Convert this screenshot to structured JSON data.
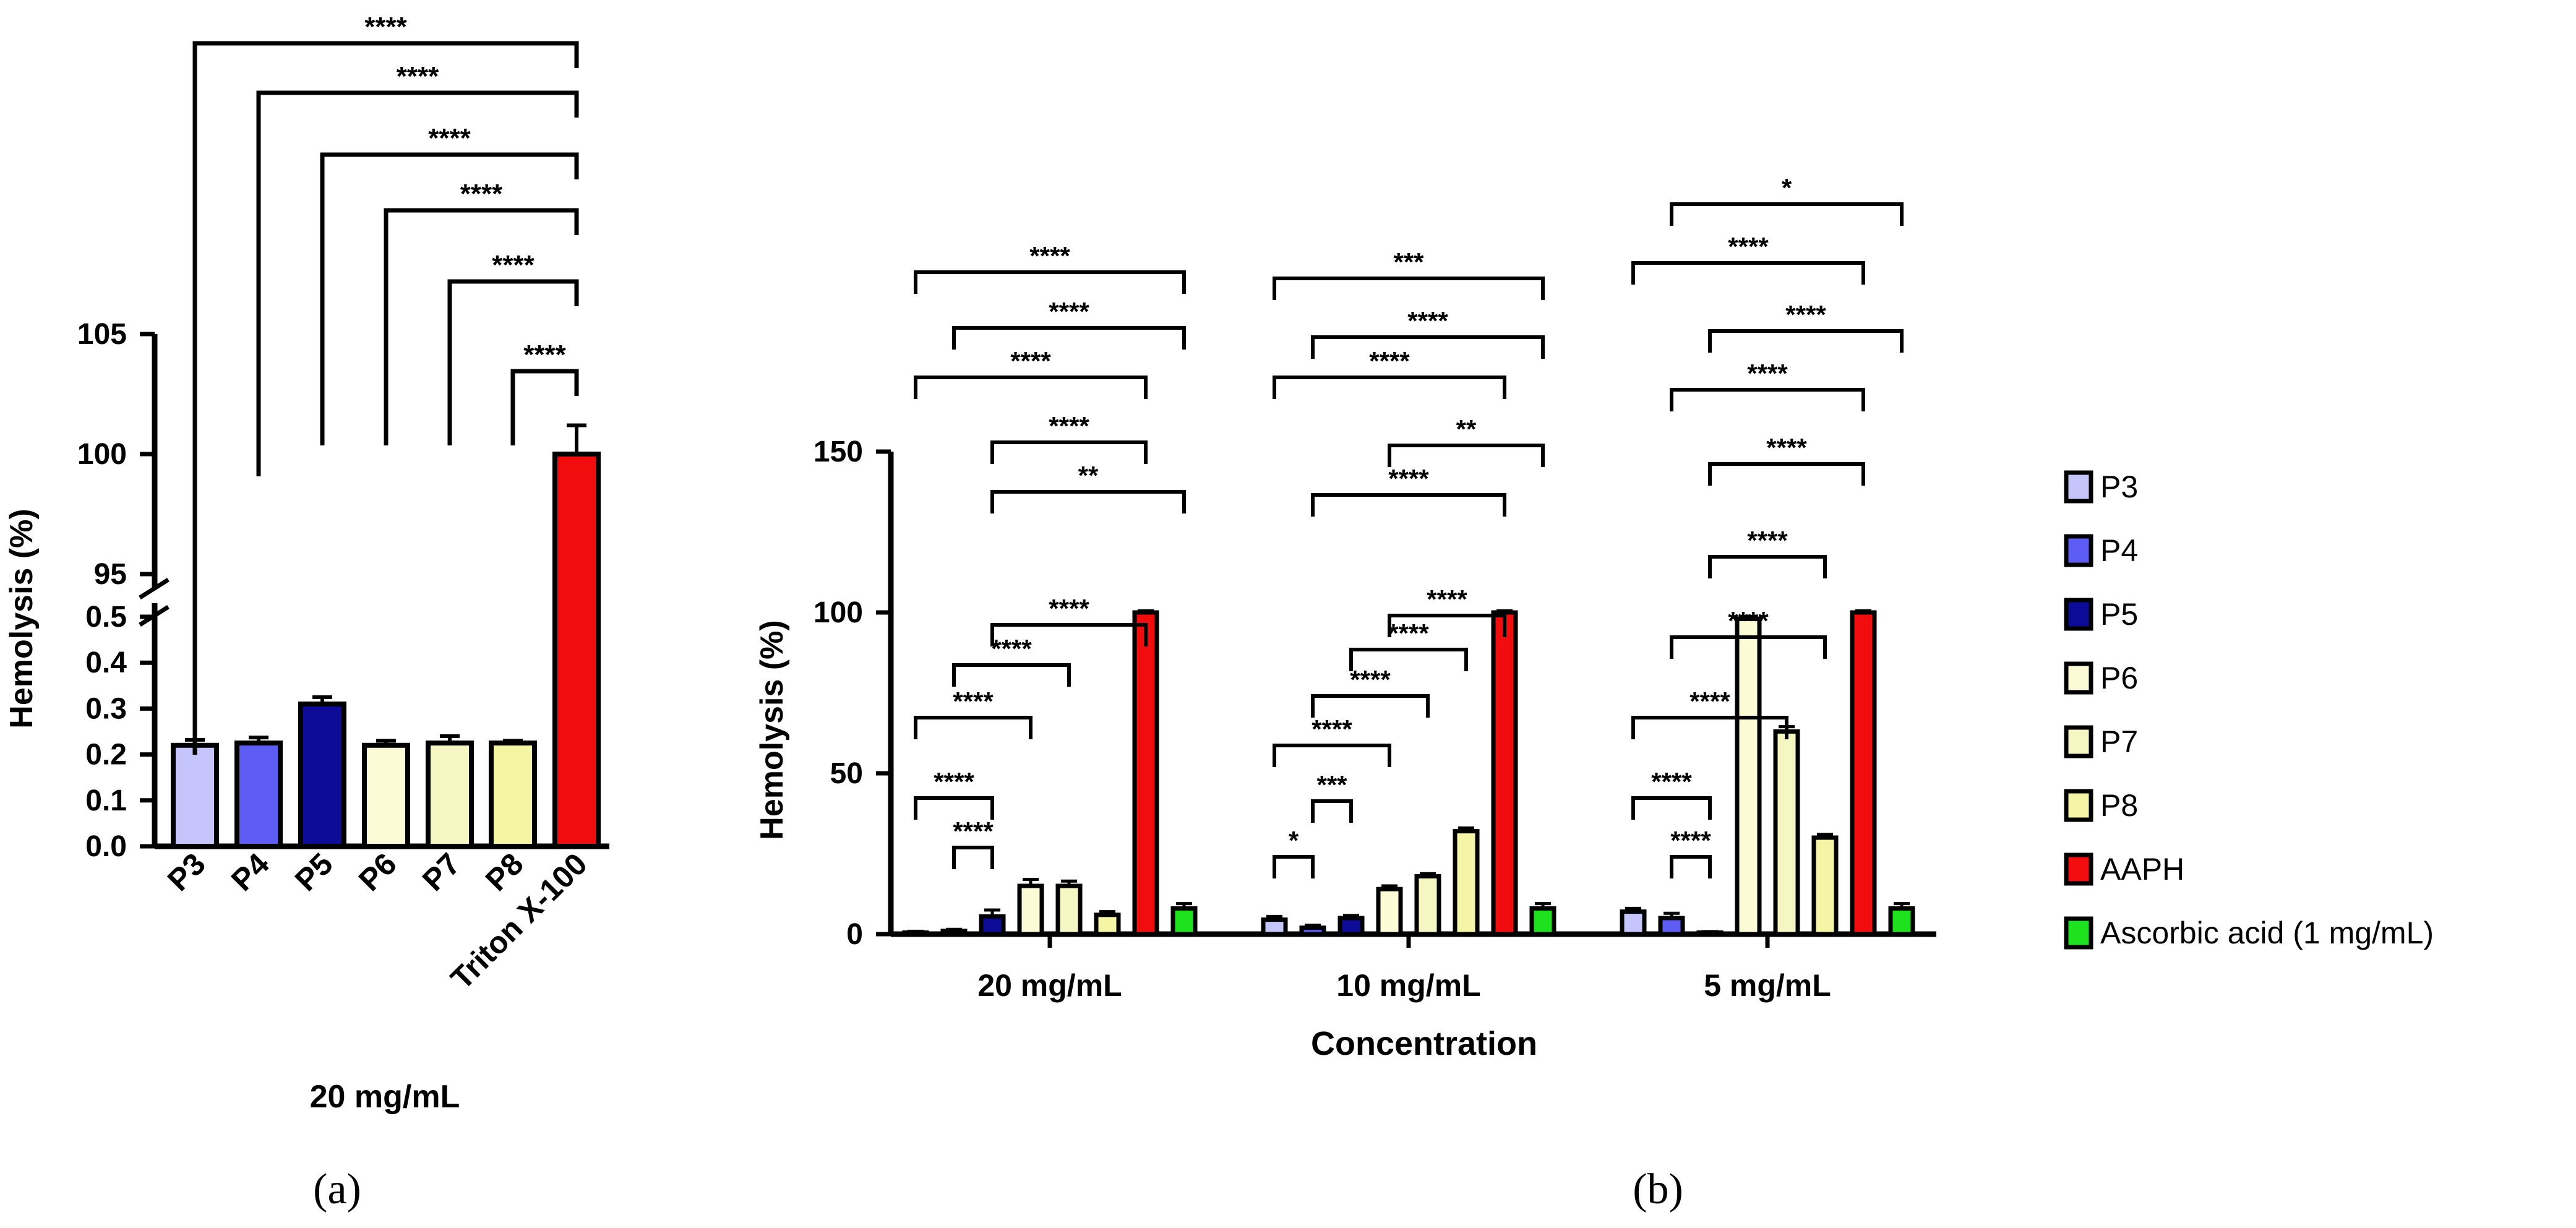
{
  "chart_data": [
    {
      "id": "a",
      "type": "bar",
      "panel_label": "(a)",
      "title": "",
      "xlabel": "20 mg/mL",
      "ylabel": "Hemolysis (%)",
      "y_axis_break": true,
      "ylim_lower": [
        0,
        0.5
      ],
      "ylim_upper": [
        95,
        105
      ],
      "yticks_lower": [
        "0.0",
        "0.1",
        "0.2",
        "0.3",
        "0.4",
        "0.5"
      ],
      "yticks_upper": [
        "95",
        "100",
        "105"
      ],
      "categories": [
        "P3",
        "P4",
        "P5",
        "P6",
        "P7",
        "P8",
        "Triton X-100"
      ],
      "values": [
        0.22,
        0.225,
        0.31,
        0.22,
        0.225,
        0.225,
        100
      ],
      "errors": [
        0.012,
        0.012,
        0.015,
        0.01,
        0.015,
        0.005,
        1.2
      ],
      "colors": [
        "#c5c5fb",
        "#5d5df5",
        "#0c0c99",
        "#fbfbd6",
        "#f5f7c3",
        "#f5f5a6",
        "#f10d0d"
      ],
      "comparisons": [
        {
          "from": "P3",
          "to": "Triton X-100",
          "label": "****"
        },
        {
          "from": "P4",
          "to": "Triton X-100",
          "label": "****"
        },
        {
          "from": "P5",
          "to": "Triton X-100",
          "label": "****"
        },
        {
          "from": "P6",
          "to": "Triton X-100",
          "label": "****"
        },
        {
          "from": "P7",
          "to": "Triton X-100",
          "label": "****"
        },
        {
          "from": "P8",
          "to": "Triton X-100",
          "label": "****"
        }
      ]
    },
    {
      "id": "b",
      "type": "bar",
      "panel_label": "(b)",
      "title": "",
      "xlabel": "Concentration",
      "ylabel": "Hemolysis (%)",
      "ylim": [
        0,
        150
      ],
      "yticks": [
        "0",
        "50",
        "100",
        "150"
      ],
      "categories": [
        "20 mg/mL",
        "10 mg/mL",
        "5 mg/mL"
      ],
      "legend_position": "right",
      "series": [
        {
          "name": "P3",
          "color": "#c5c5fb",
          "values": [
            0.5,
            4.5,
            7.0
          ],
          "errors": [
            0.4,
            1.0,
            1.0
          ]
        },
        {
          "name": "P4",
          "color": "#5d5df5",
          "values": [
            1.0,
            2.0,
            5.0
          ],
          "errors": [
            0.5,
            0.8,
            1.5
          ]
        },
        {
          "name": "P5",
          "color": "#0c0c99",
          "values": [
            5.5,
            5.0,
            0.5
          ],
          "errors": [
            2.0,
            0.8,
            0.3
          ]
        },
        {
          "name": "P6",
          "color": "#fbfbd6",
          "values": [
            15.0,
            14.0,
            98.0
          ],
          "errors": [
            2.0,
            1.0,
            0.8
          ]
        },
        {
          "name": "P7",
          "color": "#f5f7c3",
          "values": [
            15.0,
            18.0,
            63.0
          ],
          "errors": [
            1.5,
            0.8,
            1.5
          ]
        },
        {
          "name": "P8",
          "color": "#f5f5a6",
          "values": [
            6.0,
            32.0,
            30.0
          ],
          "errors": [
            1.0,
            1.0,
            1.0
          ]
        },
        {
          "name": "AAPH",
          "color": "#f10d0d",
          "values": [
            100.0,
            100.0,
            100.0
          ],
          "errors": [
            0.5,
            0.5,
            0.5
          ]
        },
        {
          "name": "Ascorbic acid (1 mg/mL)",
          "color": "#1fe21f",
          "values": [
            8.0,
            8.0,
            8.0
          ],
          "errors": [
            1.5,
            1.5,
            1.5
          ]
        }
      ],
      "comparisons": [
        {
          "group": "20 mg/mL",
          "from": "P4",
          "to": "P5",
          "label": "****"
        },
        {
          "group": "20 mg/mL",
          "from": "P3",
          "to": "P5",
          "label": "****"
        },
        {
          "group": "20 mg/mL",
          "from": "P3",
          "to": "P6",
          "label": "****"
        },
        {
          "group": "20 mg/mL",
          "from": "P4",
          "to": "P7",
          "label": "****"
        },
        {
          "group": "20 mg/mL",
          "from": "P5",
          "to": "AAPH",
          "label": "****"
        },
        {
          "group": "20 mg/mL",
          "from": "P5",
          "to": "Ascorbic acid (1 mg/mL)",
          "label": "**"
        },
        {
          "group": "20 mg/mL",
          "from": "P5",
          "to": "AAPH",
          "label": "****"
        },
        {
          "group": "20 mg/mL",
          "from": "P3",
          "to": "AAPH",
          "label": "****"
        },
        {
          "group": "20 mg/mL",
          "from": "P4",
          "to": "Ascorbic acid (1 mg/mL)",
          "label": "****"
        },
        {
          "group": "20 mg/mL",
          "from": "P3",
          "to": "Ascorbic acid (1 mg/mL)",
          "label": "****"
        },
        {
          "group": "10 mg/mL",
          "from": "P3",
          "to": "P4",
          "label": "*"
        },
        {
          "group": "10 mg/mL",
          "from": "P4",
          "to": "P5",
          "label": "***"
        },
        {
          "group": "10 mg/mL",
          "from": "P3",
          "to": "P6",
          "label": "****"
        },
        {
          "group": "10 mg/mL",
          "from": "P4",
          "to": "P7",
          "label": "****"
        },
        {
          "group": "10 mg/mL",
          "from": "P5",
          "to": "P8",
          "label": "****"
        },
        {
          "group": "10 mg/mL",
          "from": "P6",
          "to": "AAPH",
          "label": "****"
        },
        {
          "group": "10 mg/mL",
          "from": "P4",
          "to": "AAPH",
          "label": "****"
        },
        {
          "group": "10 mg/mL",
          "from": "P6",
          "to": "Ascorbic acid (1 mg/mL)",
          "label": "**"
        },
        {
          "group": "10 mg/mL",
          "from": "P3",
          "to": "AAPH",
          "label": "****"
        },
        {
          "group": "10 mg/mL",
          "from": "P4",
          "to": "Ascorbic acid (1 mg/mL)",
          "label": "****"
        },
        {
          "group": "10 mg/mL",
          "from": "P3",
          "to": "Ascorbic acid (1 mg/mL)",
          "label": "***"
        },
        {
          "group": "5 mg/mL",
          "from": "P4",
          "to": "P5",
          "label": "****"
        },
        {
          "group": "5 mg/mL",
          "from": "P3",
          "to": "P5",
          "label": "****"
        },
        {
          "group": "5 mg/mL",
          "from": "P3",
          "to": "P7",
          "label": "****"
        },
        {
          "group": "5 mg/mL",
          "from": "P4",
          "to": "P8",
          "label": "****"
        },
        {
          "group": "5 mg/mL",
          "from": "P5",
          "to": "P8",
          "label": "****"
        },
        {
          "group": "5 mg/mL",
          "from": "P5",
          "to": "AAPH",
          "label": "****"
        },
        {
          "group": "5 mg/mL",
          "from": "P4",
          "to": "AAPH",
          "label": "****"
        },
        {
          "group": "5 mg/mL",
          "from": "P5",
          "to": "Ascorbic acid (1 mg/mL)",
          "label": "****"
        },
        {
          "group": "5 mg/mL",
          "from": "P3",
          "to": "AAPH",
          "label": "****"
        },
        {
          "group": "5 mg/mL",
          "from": "P4",
          "to": "Ascorbic acid (1 mg/mL)",
          "label": "*"
        }
      ]
    }
  ]
}
